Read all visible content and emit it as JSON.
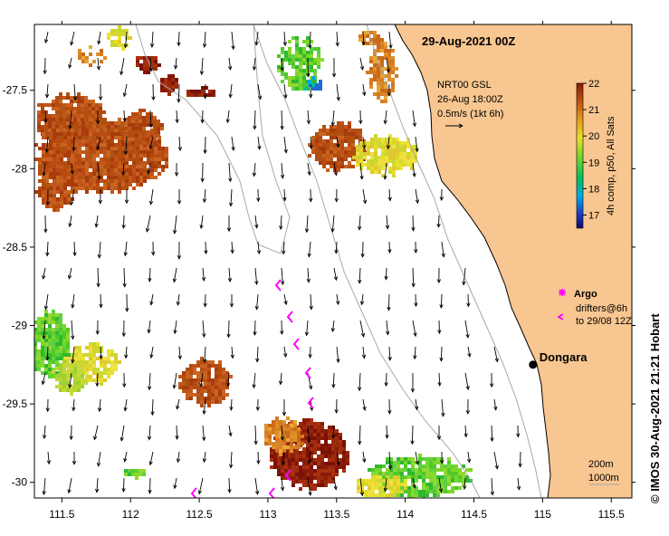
{
  "map": {
    "title": "29-Aug-2021 00Z",
    "product": {
      "line1": "NRT00 GSL",
      "line2": "26-Aug 18:00Z",
      "line3": "0.5m/s (1kt 6h)"
    },
    "colorbar": {
      "title": "4h comp, p50, All Sats",
      "min": 16.5,
      "max": 22,
      "ticks": [
        "22",
        "21",
        "20",
        "19",
        "18",
        "17"
      ]
    },
    "legend": {
      "argo_label": "Argo",
      "drifters_line1": "drifters@6h",
      "drifters_line2": "to 29/08 12Z"
    },
    "place": {
      "name": "Dongara",
      "lon": 114.93,
      "lat": -29.25
    },
    "bathymetry": {
      "line1": "200m",
      "line2": "1000m"
    },
    "credit": "© IMOS 30-Aug-2021 21:21 Hobart",
    "axes": {
      "lon_ticks": [
        "111.5",
        "112",
        "112.5",
        "113",
        "113.5",
        "114",
        "114.5",
        "115",
        "115.5"
      ],
      "lat_ticks": [
        "-27.5",
        "-28",
        "-28.5",
        "-29",
        "-29.5",
        "-30"
      ],
      "lon_range": [
        111.3,
        115.65
      ],
      "lat_range": [
        -27.08,
        -30.1
      ]
    },
    "colors": {
      "land": "#f8c690",
      "sea": "#ffffff",
      "argo": "#ff00ff",
      "current_vectors": "#000000"
    }
  }
}
